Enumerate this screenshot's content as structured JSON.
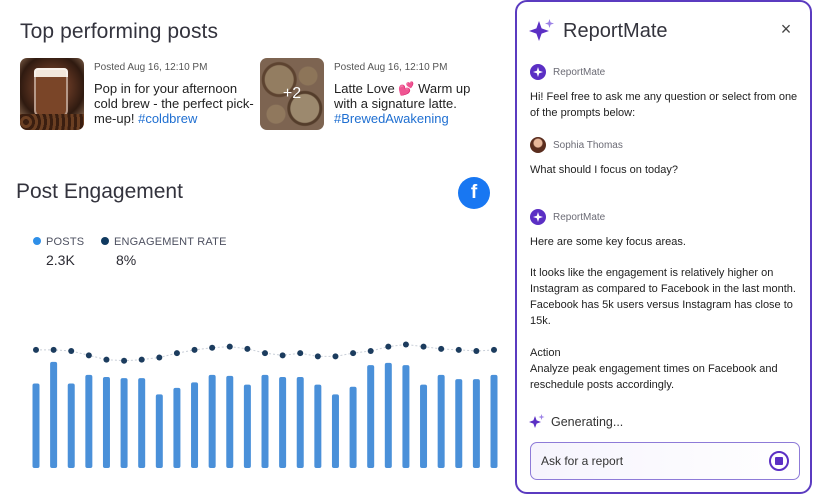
{
  "top_posts": {
    "title": "Top performing posts",
    "posts": [
      {
        "date": "Posted Aug 16, 12:10 PM",
        "text": "Pop in for your afternoon cold brew - the perfect pick-me-up!",
        "hashtag": "#coldbrew",
        "thumb_icon": "iced-coffee-photo"
      },
      {
        "date": "Posted Aug 16, 12:10 PM",
        "text": "Latte Love 💕 Warm up with a signature latte.",
        "hashtag": "#BrewedAwakening",
        "thumb_overlay": "+2",
        "thumb_icon": "latte-art-photo"
      }
    ]
  },
  "engagement": {
    "title": "Post Engagement",
    "platform_icon": "facebook-icon",
    "legend": [
      {
        "label": "POSTS",
        "value": "2.3K",
        "color": "#2e8fe8"
      },
      {
        "label": "ENGAGEMENT RATE",
        "value": "8%",
        "color": "#103a60"
      }
    ]
  },
  "chart_data": {
    "type": "bar",
    "series": [
      {
        "name": "POSTS",
        "values": [
          78,
          98,
          78,
          86,
          84,
          83,
          83,
          68,
          74,
          79,
          86,
          85,
          77,
          86,
          84,
          84,
          77,
          68,
          75,
          95,
          97,
          95,
          77,
          86,
          82,
          82,
          86
        ],
        "color": "#4a90d9"
      },
      {
        "name": "ENGAGEMENT RATE",
        "values": [
          109,
          109,
          108,
          104,
          100,
          99,
          100,
          102,
          106,
          109,
          111,
          112,
          110,
          106,
          104,
          106,
          103,
          103,
          106,
          108,
          112,
          114,
          112,
          110,
          109,
          108,
          109
        ],
        "color": "#1c3c5e"
      }
    ],
    "ylim": [
      0,
      120
    ],
    "grid": false
  },
  "assistant": {
    "title": "ReportMate",
    "close_label": "×",
    "messages": [
      {
        "sender": "ReportMate",
        "text": "Hi! Feel free to ask me any question or select from one of the prompts below:"
      },
      {
        "sender": "Sophia Thomas",
        "text": "What should I focus on today?"
      },
      {
        "sender": "ReportMate",
        "intro": "Here are some key focus areas.",
        "body": "It looks like the engagement is relatively higher on Instagram as compared to Facebook in the last month. Facebook has 5k users versus Instagram has close to 15k.",
        "action_title": "Action",
        "action_text": "Analyze peak engagement times on Facebook and reschedule posts accordingly."
      }
    ],
    "status": "Generating...",
    "input_placeholder": "Ask for a report",
    "accent_color": "#5b2fc4"
  }
}
